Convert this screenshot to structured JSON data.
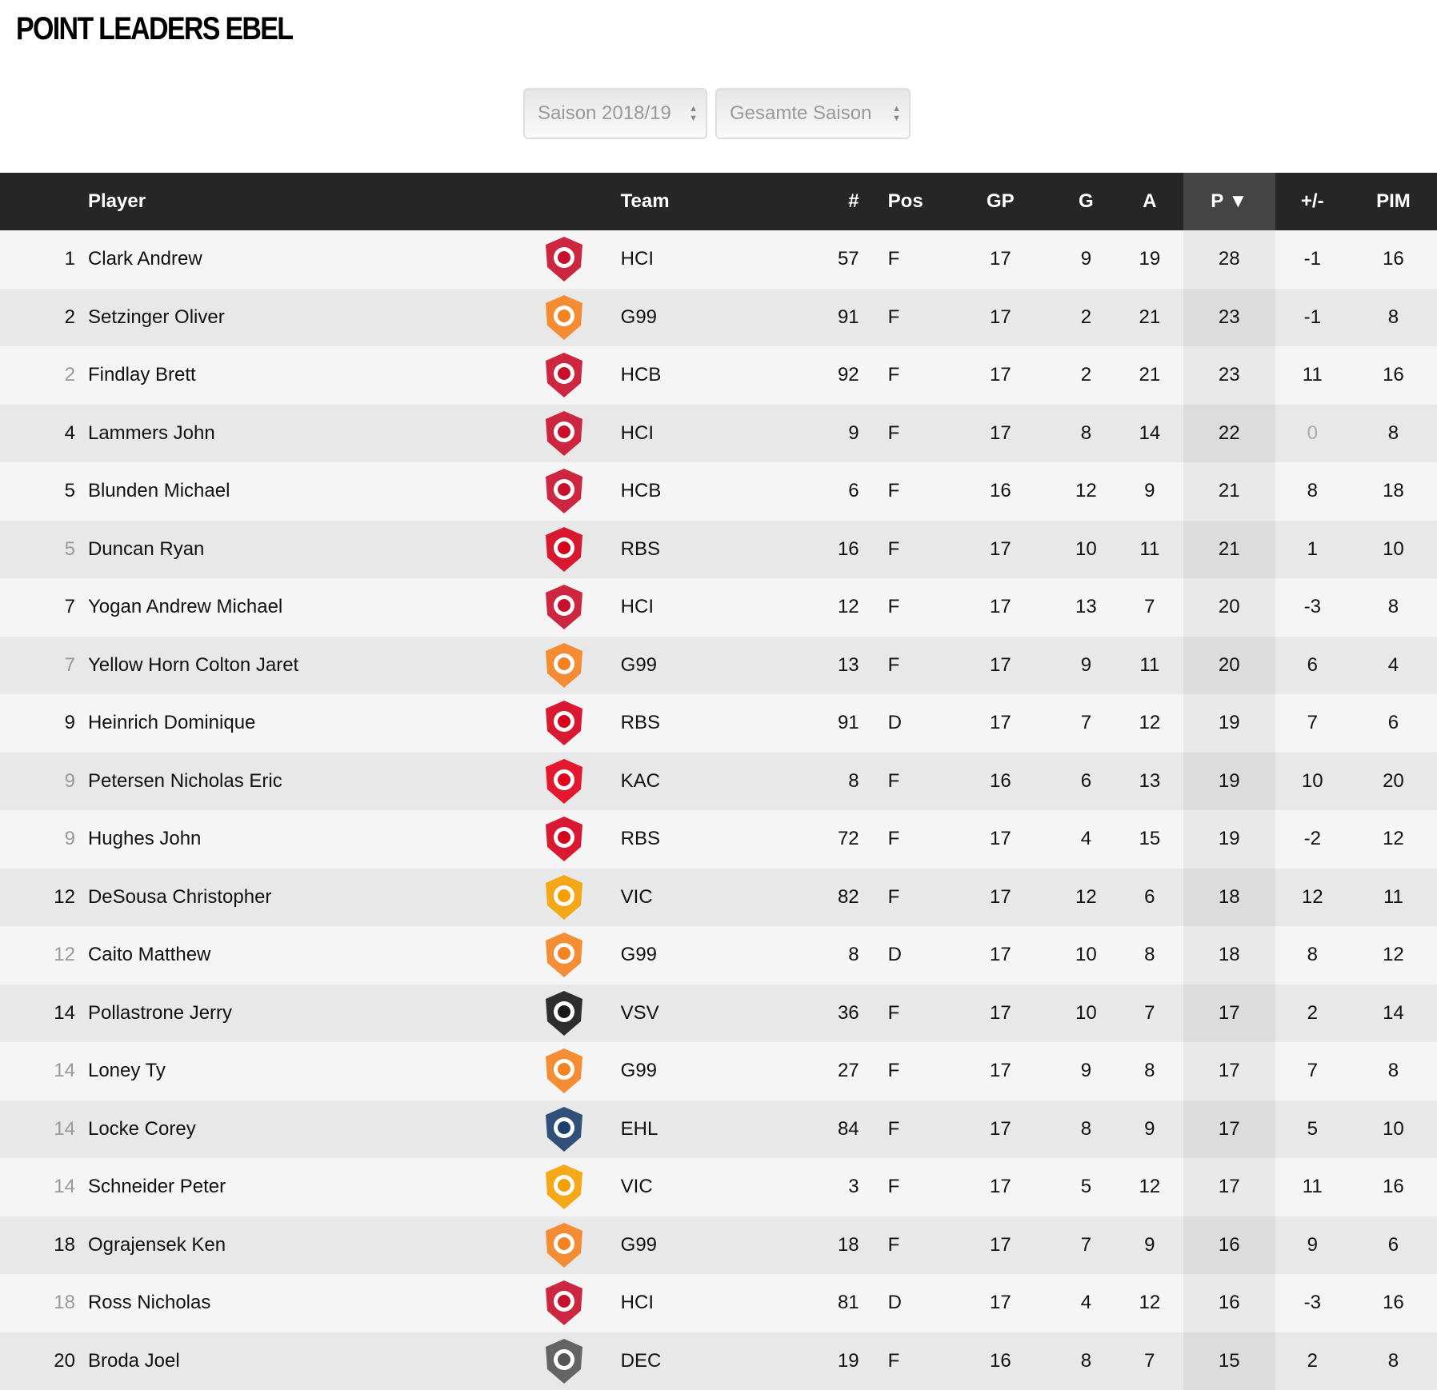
{
  "title": "POINT LEADERS EBEL",
  "filters": {
    "season": "Saison 2018/19",
    "period": "Gesamte Saison"
  },
  "columns": {
    "player": "Player",
    "team": "Team",
    "number": "#",
    "pos": "Pos",
    "gp": "GP",
    "g": "G",
    "a": "A",
    "p": "P ▼",
    "plusminus": "+/-",
    "pim": "PIM"
  },
  "team_colors": {
    "HCI": "#c8102e",
    "G99": "#f58220",
    "HCB": "#c8102e",
    "RBS": "#d6001c",
    "KAC": "#e2001a",
    "VIC": "#f5a000",
    "VSV": "#1a1a1a",
    "EHL": "#1c3f6e",
    "DEC": "#555555"
  },
  "rows": [
    {
      "rank": "1",
      "tie": false,
      "name": "Clark Andrew",
      "team": "HCI",
      "num": "57",
      "pos": "F",
      "gp": "17",
      "g": "9",
      "a": "19",
      "p": "28",
      "pm": "-1",
      "pim": "16"
    },
    {
      "rank": "2",
      "tie": false,
      "name": "Setzinger Oliver",
      "team": "G99",
      "num": "91",
      "pos": "F",
      "gp": "17",
      "g": "2",
      "a": "21",
      "p": "23",
      "pm": "-1",
      "pim": "8"
    },
    {
      "rank": "2",
      "tie": true,
      "name": "Findlay Brett",
      "team": "HCB",
      "num": "92",
      "pos": "F",
      "gp": "17",
      "g": "2",
      "a": "21",
      "p": "23",
      "pm": "11",
      "pim": "16"
    },
    {
      "rank": "4",
      "tie": false,
      "name": "Lammers John",
      "team": "HCI",
      "num": "9",
      "pos": "F",
      "gp": "17",
      "g": "8",
      "a": "14",
      "p": "22",
      "pm": "0",
      "pim": "8"
    },
    {
      "rank": "5",
      "tie": false,
      "name": "Blunden Michael",
      "team": "HCB",
      "num": "6",
      "pos": "F",
      "gp": "16",
      "g": "12",
      "a": "9",
      "p": "21",
      "pm": "8",
      "pim": "18"
    },
    {
      "rank": "5",
      "tie": true,
      "name": "Duncan Ryan",
      "team": "RBS",
      "num": "16",
      "pos": "F",
      "gp": "17",
      "g": "10",
      "a": "11",
      "p": "21",
      "pm": "1",
      "pim": "10"
    },
    {
      "rank": "7",
      "tie": false,
      "name": "Yogan Andrew Michael",
      "team": "HCI",
      "num": "12",
      "pos": "F",
      "gp": "17",
      "g": "13",
      "a": "7",
      "p": "20",
      "pm": "-3",
      "pim": "8"
    },
    {
      "rank": "7",
      "tie": true,
      "name": "Yellow Horn Colton Jaret",
      "team": "G99",
      "num": "13",
      "pos": "F",
      "gp": "17",
      "g": "9",
      "a": "11",
      "p": "20",
      "pm": "6",
      "pim": "4"
    },
    {
      "rank": "9",
      "tie": false,
      "name": "Heinrich Dominique",
      "team": "RBS",
      "num": "91",
      "pos": "D",
      "gp": "17",
      "g": "7",
      "a": "12",
      "p": "19",
      "pm": "7",
      "pim": "6"
    },
    {
      "rank": "9",
      "tie": true,
      "name": "Petersen Nicholas Eric",
      "team": "KAC",
      "num": "8",
      "pos": "F",
      "gp": "16",
      "g": "6",
      "a": "13",
      "p": "19",
      "pm": "10",
      "pim": "20"
    },
    {
      "rank": "9",
      "tie": true,
      "name": "Hughes John",
      "team": "RBS",
      "num": "72",
      "pos": "F",
      "gp": "17",
      "g": "4",
      "a": "15",
      "p": "19",
      "pm": "-2",
      "pim": "12"
    },
    {
      "rank": "12",
      "tie": false,
      "name": "DeSousa Christopher",
      "team": "VIC",
      "num": "82",
      "pos": "F",
      "gp": "17",
      "g": "12",
      "a": "6",
      "p": "18",
      "pm": "12",
      "pim": "11"
    },
    {
      "rank": "12",
      "tie": true,
      "name": "Caito Matthew",
      "team": "G99",
      "num": "8",
      "pos": "D",
      "gp": "17",
      "g": "10",
      "a": "8",
      "p": "18",
      "pm": "8",
      "pim": "12"
    },
    {
      "rank": "14",
      "tie": false,
      "name": "Pollastrone Jerry",
      "team": "VSV",
      "num": "36",
      "pos": "F",
      "gp": "17",
      "g": "10",
      "a": "7",
      "p": "17",
      "pm": "2",
      "pim": "14"
    },
    {
      "rank": "14",
      "tie": true,
      "name": "Loney Ty",
      "team": "G99",
      "num": "27",
      "pos": "F",
      "gp": "17",
      "g": "9",
      "a": "8",
      "p": "17",
      "pm": "7",
      "pim": "8"
    },
    {
      "rank": "14",
      "tie": true,
      "name": "Locke Corey",
      "team": "EHL",
      "num": "84",
      "pos": "F",
      "gp": "17",
      "g": "8",
      "a": "9",
      "p": "17",
      "pm": "5",
      "pim": "10"
    },
    {
      "rank": "14",
      "tie": true,
      "name": "Schneider Peter",
      "team": "VIC",
      "num": "3",
      "pos": "F",
      "gp": "17",
      "g": "5",
      "a": "12",
      "p": "17",
      "pm": "11",
      "pim": "16"
    },
    {
      "rank": "18",
      "tie": false,
      "name": "Ograjensek Ken",
      "team": "G99",
      "num": "18",
      "pos": "F",
      "gp": "17",
      "g": "7",
      "a": "9",
      "p": "16",
      "pm": "9",
      "pim": "6"
    },
    {
      "rank": "18",
      "tie": true,
      "name": "Ross Nicholas",
      "team": "HCI",
      "num": "81",
      "pos": "D",
      "gp": "17",
      "g": "4",
      "a": "12",
      "p": "16",
      "pm": "-3",
      "pim": "16"
    },
    {
      "rank": "20",
      "tie": false,
      "name": "Broda Joel",
      "team": "DEC",
      "num": "19",
      "pos": "F",
      "gp": "16",
      "g": "8",
      "a": "7",
      "p": "15",
      "pm": "2",
      "pim": "8"
    }
  ]
}
